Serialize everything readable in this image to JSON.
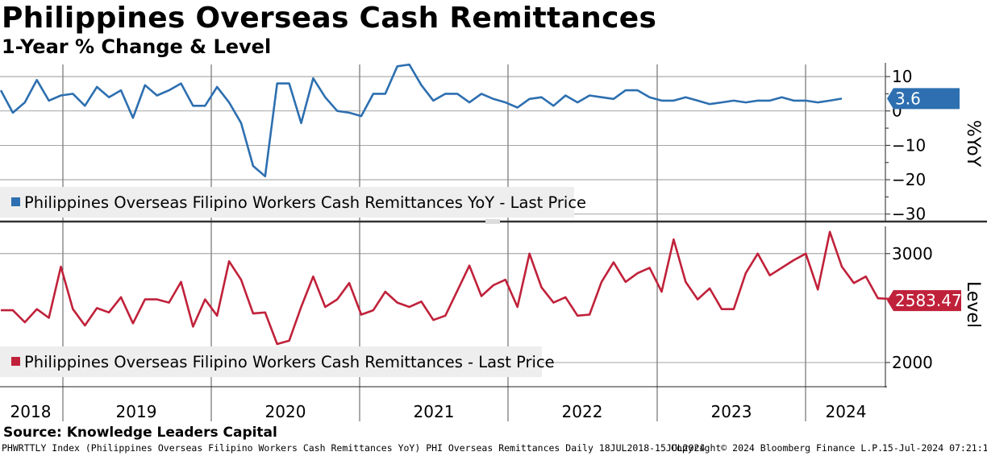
{
  "title": "Philippines Overseas Cash Remittances",
  "subtitle": "1-Year % Change & Level",
  "source": "Source: Knowledge Leaders Capital",
  "footer": {
    "left": "PHWRTTLY Index (Philippines Overseas Filipino Workers Cash Remittances YoY) PHI Overseas Remittances  Daily 18JUL2018-15JUL2024",
    "middle": "Copyright© 2024 Bloomberg Finance L.P.",
    "right": "15-Jul-2024 07:21:11"
  },
  "colors": {
    "yoy": "#2d6fb0",
    "level": "#c0213a",
    "legend_bg": "#eeeeee",
    "grid": "#555555"
  },
  "chart_data": [
    {
      "type": "line",
      "panel": "top",
      "axis_label": "%YoY",
      "yticks": [
        10,
        0,
        -10,
        -20,
        -30
      ],
      "ylim": [
        -31,
        14
      ],
      "last_value_label": "3.6",
      "legend": "Philippines Overseas Filipino Workers Cash Remittances YoY - Last Price",
      "x_start": "2018-07",
      "series": [
        {
          "values": [
            6,
            -0.5,
            2.5,
            9,
            3,
            4.5,
            5,
            1.5,
            7,
            4,
            6,
            -2,
            7.5,
            4.5,
            6,
            8,
            1.5,
            1.5,
            7,
            2.5,
            -3.5,
            -16,
            -19,
            8,
            8,
            -3.5,
            9.5,
            4,
            0,
            -0.5,
            -1.5,
            5,
            5,
            13,
            13.5,
            7.5,
            3,
            5,
            5,
            2.5,
            5,
            3.5,
            2.5,
            1,
            3.5,
            4,
            1.5,
            4.5,
            2.5,
            4.5,
            4,
            3.5,
            6,
            6,
            4,
            3,
            3,
            4,
            3,
            2,
            2.5,
            3,
            2.5,
            3,
            3,
            4,
            3,
            3,
            2.5,
            3,
            3.6
          ]
        }
      ]
    },
    {
      "type": "line",
      "panel": "bottom",
      "axis_label": "Level",
      "yticks": [
        3000,
        2000
      ],
      "ylim": [
        1800,
        3250
      ],
      "last_value_label": "2583.47",
      "legend": "Philippines Overseas Filipino Workers Cash Remittances - Last Price",
      "x_start": "2018-07",
      "x_tick_labels": [
        "2018",
        "2019",
        "2020",
        "2021",
        "2022",
        "2023",
        "2024"
      ],
      "series": [
        {
          "values": [
            2480,
            2480,
            2370,
            2490,
            2410,
            2880,
            2490,
            2340,
            2500,
            2460,
            2600,
            2360,
            2580,
            2580,
            2550,
            2740,
            2330,
            2580,
            2430,
            2930,
            2760,
            2450,
            2460,
            2170,
            2200,
            2510,
            2790,
            2510,
            2580,
            2730,
            2440,
            2480,
            2650,
            2550,
            2510,
            2560,
            2390,
            2430,
            2660,
            2890,
            2610,
            2710,
            2760,
            2510,
            3000,
            2690,
            2550,
            2600,
            2430,
            2440,
            2740,
            2920,
            2740,
            2820,
            2870,
            2650,
            3130,
            2740,
            2580,
            2680,
            2490,
            2490,
            2820,
            3000,
            2800,
            2870,
            2940,
            3000,
            2670,
            3200,
            2880,
            2730,
            2790,
            2590,
            2583.47
          ]
        }
      ]
    }
  ]
}
